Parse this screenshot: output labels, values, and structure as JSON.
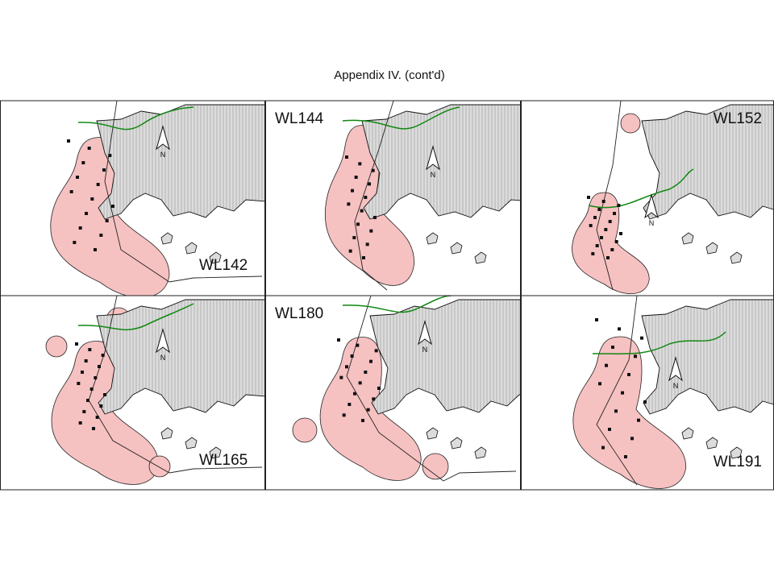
{
  "title": "Appendix IV.  (cont'd)",
  "panels": [
    {
      "label": "WL142",
      "north": "N"
    },
    {
      "label": "WL144",
      "north": "N"
    },
    {
      "label": "WL152",
      "north": "N"
    },
    {
      "label": "WL165",
      "north": "N"
    },
    {
      "label": "WL180",
      "north": "N"
    },
    {
      "label": "WL191",
      "north": "N"
    }
  ]
}
